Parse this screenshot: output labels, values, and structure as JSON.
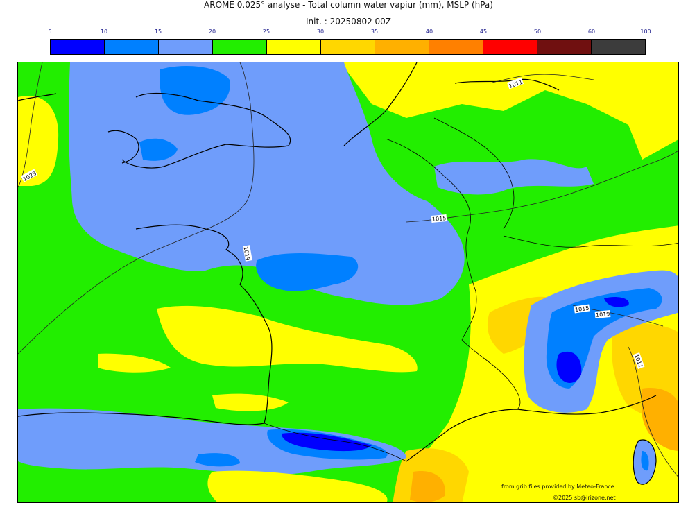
{
  "header": {
    "title": "AROME 0.025° analyse - Total column water vapiur (mm), MSLP (hPa)",
    "init": "Init. : 20250802 00Z"
  },
  "legend": {
    "ticks": [
      "5",
      "10",
      "15",
      "20",
      "25",
      "30",
      "35",
      "40",
      "45",
      "50",
      "60",
      "100"
    ],
    "colors": [
      "#0000ff",
      "#0080ff",
      "#6f9dfb",
      "#22ee00",
      "#ffff00",
      "#ffd700",
      "#ffb000",
      "#ff8000",
      "#ff0000",
      "#701010",
      "#3c3c3c"
    ]
  },
  "map": {
    "isobar_labels": [
      "1011",
      "1023",
      "1015",
      "1019",
      "1015",
      "1019",
      "1015",
      "1011"
    ]
  },
  "credits": {
    "line1": "from grib files provided by Meteo-France",
    "line2": "©2025 sb@irizone.net"
  }
}
